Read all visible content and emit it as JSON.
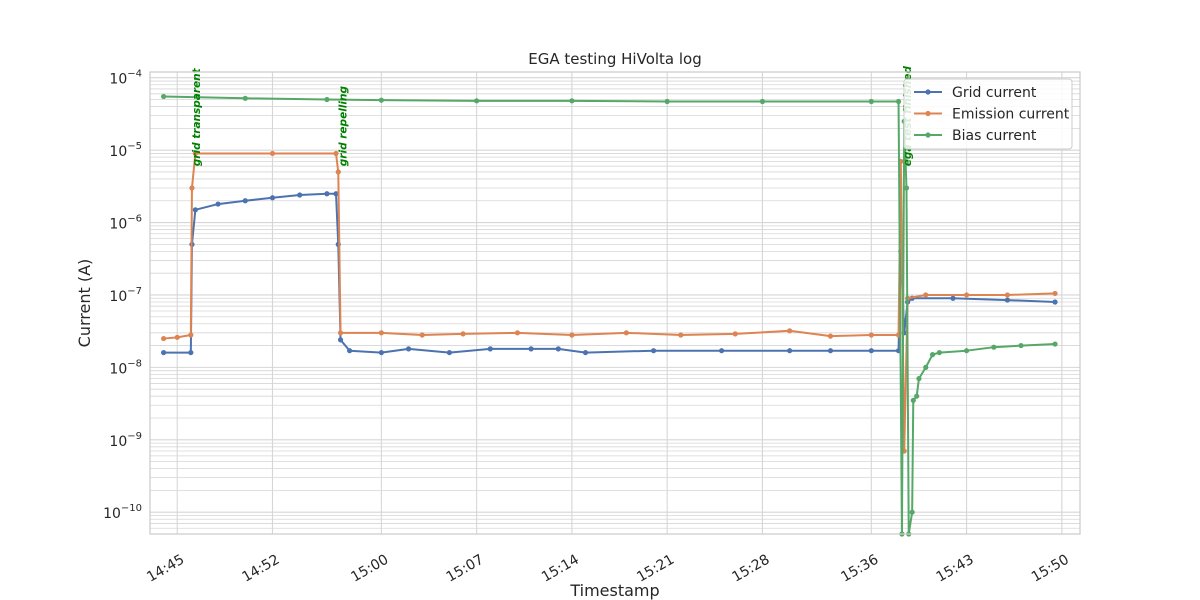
{
  "chart_data": {
    "type": "line",
    "title": "EGA testing HiVolta log",
    "xlabel": "Timestamp",
    "ylabel": "Current (A)",
    "yscale": "log",
    "ylim": [
      5e-11,
      0.00012
    ],
    "xlim": [
      "14:43:00",
      "15:51:20"
    ],
    "x_ticks": [
      "14:45",
      "14:52",
      "15:00",
      "15:07",
      "15:14",
      "15:21",
      "15:28",
      "15:36",
      "15:43",
      "15:50"
    ],
    "y_ticks": [
      {
        "value": 1e-10,
        "mantissa": "10",
        "exp": "−10"
      },
      {
        "value": 1e-09,
        "mantissa": "10",
        "exp": "−9"
      },
      {
        "value": 1e-08,
        "mantissa": "10",
        "exp": "−8"
      },
      {
        "value": 1e-07,
        "mantissa": "10",
        "exp": "−7"
      },
      {
        "value": 1e-06,
        "mantissa": "10",
        "exp": "−6"
      },
      {
        "value": 1e-05,
        "mantissa": "10",
        "exp": "−5"
      },
      {
        "value": 0.0001,
        "mantissa": "10",
        "exp": "−4"
      }
    ],
    "grid": true,
    "legend_position": "top-right",
    "series": [
      {
        "name": "Grid current",
        "color": "#4c72b0",
        "points": [
          [
            "14:44:00",
            1.6e-08
          ],
          [
            "14:46:00",
            1.6e-08
          ],
          [
            "14:46:05",
            5e-07
          ],
          [
            "14:46:20",
            1.5e-06
          ],
          [
            "14:48:00",
            1.8e-06
          ],
          [
            "14:50:00",
            2e-06
          ],
          [
            "14:52:00",
            2.2e-06
          ],
          [
            "14:54:00",
            2.4e-06
          ],
          [
            "14:56:00",
            2.5e-06
          ],
          [
            "14:56:40",
            2.5e-06
          ],
          [
            "14:56:50",
            5e-07
          ],
          [
            "14:57:00",
            2.4e-08
          ],
          [
            "14:57:40",
            1.7e-08
          ],
          [
            "15:00:00",
            1.6e-08
          ],
          [
            "15:02:00",
            1.8e-08
          ],
          [
            "15:05:00",
            1.6e-08
          ],
          [
            "15:08:00",
            1.8e-08
          ],
          [
            "15:11:00",
            1.8e-08
          ],
          [
            "15:13:00",
            1.8e-08
          ],
          [
            "15:15:00",
            1.6e-08
          ],
          [
            "15:20:00",
            1.7e-08
          ],
          [
            "15:25:00",
            1.7e-08
          ],
          [
            "15:30:00",
            1.7e-08
          ],
          [
            "15:33:00",
            1.7e-08
          ],
          [
            "15:36:00",
            1.7e-08
          ],
          [
            "15:38:00",
            1.7e-08
          ],
          [
            "15:38:10",
            4e-07
          ],
          [
            "15:38:25",
            3e-08
          ],
          [
            "15:38:40",
            8e-08
          ],
          [
            "15:39:00",
            9e-08
          ],
          [
            "15:42:00",
            9e-08
          ],
          [
            "15:46:00",
            8.5e-08
          ],
          [
            "15:49:30",
            8e-08
          ]
        ]
      },
      {
        "name": "Emission current",
        "color": "#dd8452",
        "points": [
          [
            "14:44:00",
            2.5e-08
          ],
          [
            "14:45:00",
            2.6e-08
          ],
          [
            "14:46:00",
            2.8e-08
          ],
          [
            "14:46:05",
            3e-06
          ],
          [
            "14:46:20",
            9e-06
          ],
          [
            "14:52:00",
            9e-06
          ],
          [
            "14:56:40",
            9e-06
          ],
          [
            "14:56:50",
            5e-06
          ],
          [
            "14:57:00",
            3e-08
          ],
          [
            "15:00:00",
            3e-08
          ],
          [
            "15:03:00",
            2.8e-08
          ],
          [
            "15:06:00",
            2.9e-08
          ],
          [
            "15:10:00",
            3e-08
          ],
          [
            "15:14:00",
            2.8e-08
          ],
          [
            "15:18:00",
            3e-08
          ],
          [
            "15:22:00",
            2.8e-08
          ],
          [
            "15:26:00",
            2.9e-08
          ],
          [
            "15:30:00",
            3.2e-08
          ],
          [
            "15:33:00",
            2.7e-08
          ],
          [
            "15:36:00",
            2.8e-08
          ],
          [
            "15:38:00",
            2.8e-08
          ],
          [
            "15:38:10",
            7e-06
          ],
          [
            "15:38:25",
            7e-10
          ],
          [
            "15:38:40",
            9e-08
          ],
          [
            "15:40:00",
            1e-07
          ],
          [
            "15:43:00",
            1e-07
          ],
          [
            "15:46:00",
            1e-07
          ],
          [
            "15:49:30",
            1.05e-07
          ]
        ]
      },
      {
        "name": "Bias current",
        "color": "#55a868",
        "points": [
          [
            "14:44:00",
            5.5e-05
          ],
          [
            "14:50:00",
            5.2e-05
          ],
          [
            "14:56:00",
            5e-05
          ],
          [
            "15:00:00",
            4.9e-05
          ],
          [
            "15:07:00",
            4.8e-05
          ],
          [
            "15:14:00",
            4.8e-05
          ],
          [
            "15:21:00",
            4.7e-05
          ],
          [
            "15:28:00",
            4.7e-05
          ],
          [
            "15:36:00",
            4.7e-05
          ],
          [
            "15:38:00",
            4.7e-05
          ],
          [
            "15:38:15",
            5e-11
          ],
          [
            "15:38:25",
            2.5e-05
          ],
          [
            "15:38:35",
            3e-06
          ],
          [
            "15:38:45",
            5e-11
          ],
          [
            "15:39:00",
            1e-10
          ],
          [
            "15:39:05",
            3.5e-09
          ],
          [
            "15:39:20",
            4e-09
          ],
          [
            "15:39:30",
            7e-09
          ],
          [
            "15:40:00",
            1e-08
          ],
          [
            "15:40:30",
            1.5e-08
          ],
          [
            "15:41:00",
            1.6e-08
          ],
          [
            "15:43:00",
            1.7e-08
          ],
          [
            "15:45:00",
            1.9e-08
          ],
          [
            "15:47:00",
            2e-08
          ],
          [
            "15:49:30",
            2.1e-08
          ]
        ]
      }
    ],
    "annotations": [
      {
        "text": "grid transparent",
        "x": "14:46:05",
        "y": 6e-06
      },
      {
        "text": "grid repelling",
        "x": "14:56:50",
        "y": 6e-06
      },
      {
        "text": "ega test finished",
        "x": "15:38:20",
        "y": 6e-06
      }
    ]
  }
}
